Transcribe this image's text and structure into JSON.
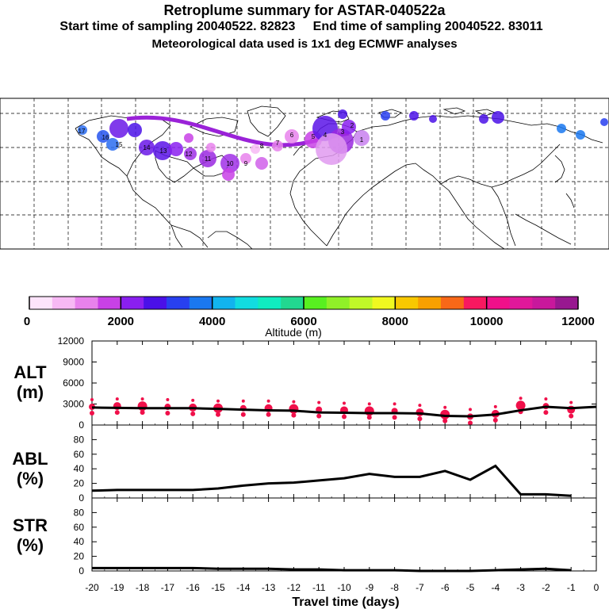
{
  "header": {
    "title": "Retroplume summary for ASTAR-040522a",
    "sampling_line": "Start time of sampling 20040522. 82823     End time of sampling 20040522. 83011",
    "met_line": "Meteorological data used is 1x1 deg ECMWF analyses"
  },
  "map": {
    "plume_labels": [
      "17",
      "16",
      "15",
      "14",
      "13",
      "12",
      "11",
      "10",
      "9",
      "8",
      "7",
      "6",
      "5",
      "4",
      "3",
      "2",
      "1"
    ]
  },
  "colorbar": {
    "ticks": [
      "0",
      "2000",
      "4000",
      "6000",
      "8000",
      "10000",
      "12000"
    ],
    "label": "Altitude (m)",
    "colors": [
      "#fde4fb",
      "#f7b9f4",
      "#e882ec",
      "#c841e6",
      "#8a1ff0",
      "#4a10e8",
      "#2840f0",
      "#1a78f0",
      "#12b4ee",
      "#12dce0",
      "#10ecc0",
      "#22d890",
      "#58f020",
      "#90f028",
      "#c0f828",
      "#f0f820",
      "#f8c800",
      "#f8a000",
      "#f86818",
      "#f81860",
      "#f0108a",
      "#e0189a",
      "#c8189c",
      "#981890"
    ]
  },
  "panels": {
    "alt": {
      "name": "ALT",
      "unit": "(m)"
    },
    "abl": {
      "name": "ABL",
      "unit": "(%)"
    },
    "str": {
      "name": "STR",
      "unit": "(%)"
    },
    "xlabel": "Travel time (days)"
  },
  "chart_data": [
    {
      "type": "line",
      "title": "ALT",
      "ylabel": "(m)",
      "xlabel": "Travel time (days)",
      "xlim": [
        -20,
        0
      ],
      "ylim": [
        0,
        12000
      ],
      "yticks": [
        "0",
        "3000",
        "6000",
        "9000",
        "12000"
      ],
      "x": [
        -20,
        -19,
        -18,
        -17,
        -16,
        -15,
        -14,
        -13,
        -12,
        -11,
        -10,
        -9,
        -8,
        -7,
        -6,
        -5,
        -4,
        -3,
        -2,
        -1,
        0
      ],
      "values": [
        2500,
        2450,
        2400,
        2400,
        2400,
        2300,
        2200,
        2100,
        2050,
        1800,
        1750,
        1700,
        1700,
        1650,
        1300,
        1250,
        1500,
        2100,
        2600,
        2400,
        2600
      ],
      "scatter_y": [
        2600,
        2700,
        2700,
        2600,
        2500,
        2400,
        2400,
        2400,
        2300,
        2200,
        2100,
        2000,
        2000,
        1800,
        1500,
        1200,
        1600,
        2800,
        2700,
        2200
      ]
    },
    {
      "type": "line",
      "title": "ABL",
      "ylabel": "(%)",
      "xlabel": "Travel time (days)",
      "xlim": [
        -20,
        0
      ],
      "ylim": [
        0,
        100
      ],
      "yticks": [
        "0",
        "20",
        "40",
        "60",
        "80"
      ],
      "x": [
        -20,
        -19,
        -18,
        -17,
        -16,
        -15,
        -14,
        -13,
        -12,
        -11,
        -10,
        -9,
        -8,
        -7,
        -6,
        -5,
        -4,
        -3,
        -2,
        -1
      ],
      "values": [
        10,
        11,
        11,
        11,
        11,
        13,
        17,
        20,
        21,
        24,
        27,
        33,
        29,
        29,
        37,
        25,
        44,
        5,
        5,
        3
      ]
    },
    {
      "type": "line",
      "title": "STR",
      "ylabel": "(%)",
      "xlabel": "Travel time (days)",
      "xlim": [
        -20,
        0
      ],
      "ylim": [
        0,
        100
      ],
      "yticks": [
        "0",
        "20",
        "40",
        "60",
        "80"
      ],
      "xticks": [
        "-20",
        "-19",
        "-18",
        "-17",
        "-16",
        "-15",
        "-14",
        "-13",
        "-12",
        "-11",
        "-10",
        "-9",
        "-8",
        "-7",
        "-6",
        "-5",
        "-4",
        "-3",
        "-2",
        "-1",
        "0"
      ],
      "x": [
        -20,
        -19,
        -18,
        -17,
        -16,
        -15,
        -14,
        -13,
        -12,
        -11,
        -10,
        -9,
        -8,
        -7,
        -6,
        -5,
        -4,
        -3,
        -2,
        -1
      ],
      "values": [
        4,
        4,
        4,
        4,
        4,
        3,
        3,
        3,
        2,
        2,
        1,
        1,
        1,
        0,
        0,
        0,
        1,
        2,
        3,
        1
      ]
    }
  ]
}
